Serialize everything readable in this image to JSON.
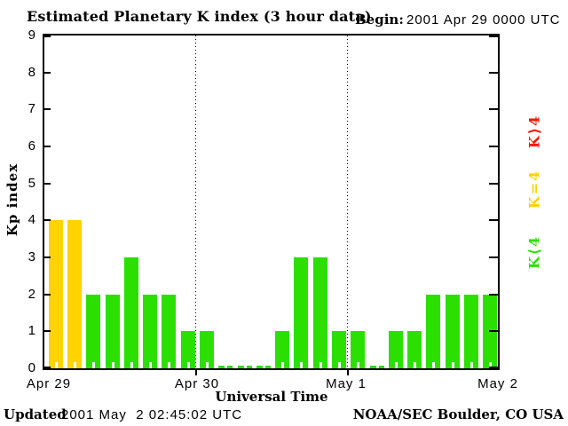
{
  "header": {
    "title": "Estimated Planetary K index (3 hour data)",
    "begin_label": "Begin:",
    "begin_value": "2001 Apr 29 0000 UTC"
  },
  "chart_data": {
    "type": "bar",
    "title": "Estimated Planetary K index (3 hour data)",
    "xlabel": "Universal Time",
    "ylabel": "Kp index",
    "ylim": [
      0,
      9
    ],
    "yticks": [
      0,
      1,
      2,
      3,
      4,
      5,
      6,
      7,
      8,
      9
    ],
    "bin_hours": 3,
    "x_day_labels": [
      "Apr 29",
      "Apr 30",
      "May 1",
      "May 2"
    ],
    "grid": "dotted vertical lines at day boundaries",
    "legend_position": "right, rotated 90deg",
    "series": [
      {
        "name": "Kp",
        "start": "2001 Apr 29 0000 UTC",
        "values": [
          4,
          4,
          2,
          2,
          3,
          2,
          2,
          1,
          1,
          0,
          0,
          0,
          1,
          3,
          3,
          1,
          1,
          0,
          1,
          1,
          2,
          2,
          2,
          2
        ]
      }
    ],
    "colors": {
      "low": "#2be000",
      "mid": "#ffd300",
      "high": "#ff1400"
    },
    "color_rule": "green K<4, yellow K=4, red K>4",
    "legend": [
      {
        "label": "K⟩4",
        "color": "#ff1400"
      },
      {
        "label": "K=4",
        "color": "#ffd300"
      },
      {
        "label": "K⟨4",
        "color": "#2be000"
      }
    ]
  },
  "footer": {
    "updated_label": "Updated",
    "updated_value": "2001 May  2 02:45:02 UTC",
    "credit": "NOAA/SEC Boulder, CO USA"
  }
}
